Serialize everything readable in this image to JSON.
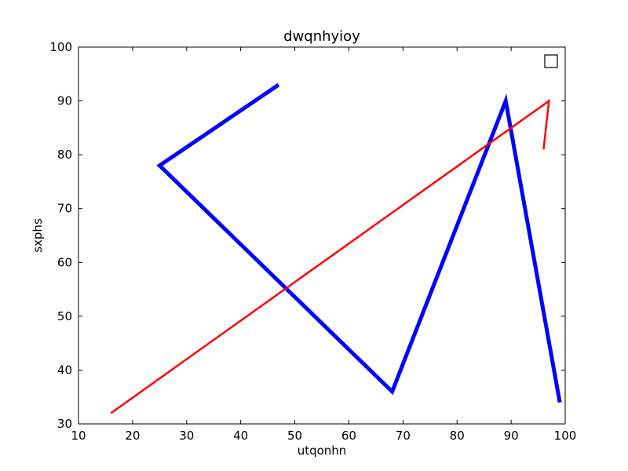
{
  "chart_data": {
    "type": "line",
    "title": "dwqnhyioy",
    "xlabel": "utqonhn",
    "ylabel": "sxphs",
    "xlim": [
      10,
      100
    ],
    "ylim": [
      30,
      100
    ],
    "xticks": [
      10,
      20,
      30,
      40,
      50,
      60,
      70,
      80,
      90,
      100
    ],
    "yticks": [
      30,
      40,
      50,
      60,
      70,
      80,
      90,
      100
    ],
    "grid": false,
    "legend": "top-right, empty",
    "series": [
      {
        "color": "#0000ff",
        "linewidth": "thick",
        "x": [
          47,
          25,
          68,
          89,
          99
        ],
        "y": [
          93,
          78,
          36,
          90,
          34
        ]
      },
      {
        "color": "#ff0000",
        "linewidth": "normal",
        "x": [
          16,
          97,
          96
        ],
        "y": [
          32,
          90,
          81
        ]
      }
    ]
  }
}
